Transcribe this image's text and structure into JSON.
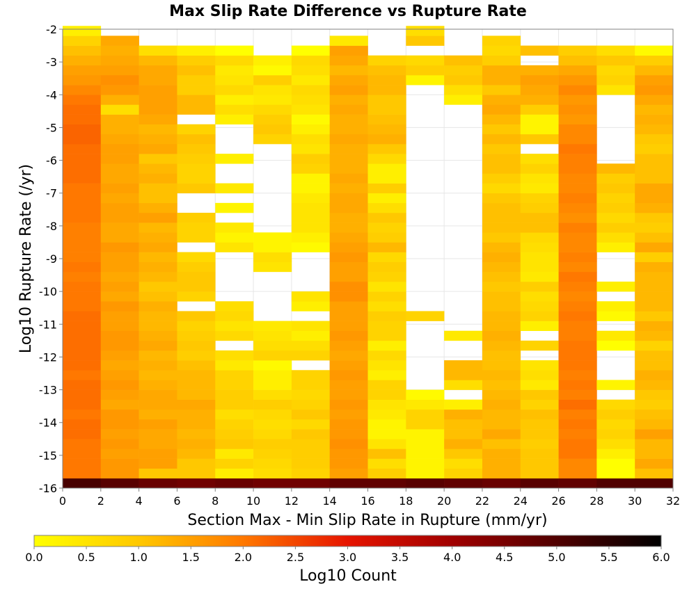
{
  "chart_data": {
    "type": "heatmap",
    "title": "Max Slip Rate Difference vs Rupture Rate",
    "xlabel": "Section Max - Min Slip Rate in Rupture (mm/yr)",
    "ylabel": "Log10 Rupture Rate (/yr)",
    "xlim": [
      0,
      32
    ],
    "ylim": [
      -16,
      -2
    ],
    "x_ticks": [
      "0",
      "2",
      "4",
      "6",
      "8",
      "10",
      "12",
      "14",
      "16",
      "18",
      "20",
      "22",
      "24",
      "26",
      "28",
      "30",
      "32"
    ],
    "y_ticks": [
      "-2",
      "-3",
      "-4",
      "-5",
      "-6",
      "-7",
      "-8",
      "-9",
      "-10",
      "-11",
      "-12",
      "-13",
      "-14",
      "-15",
      "-16"
    ],
    "grid": true,
    "x_bin_width": 2,
    "y_bin_height": 0.3,
    "colorbar": {
      "label": "Log10 Count",
      "range": [
        0.0,
        6.0
      ],
      "ticks": [
        "0.0",
        "0.5",
        "1.0",
        "1.5",
        "2.0",
        "2.5",
        "3.0",
        "3.5",
        "4.0",
        "4.5",
        "5.0",
        "5.5",
        "6.0"
      ],
      "stops": [
        {
          "v": 0.0,
          "color": "#ffff00"
        },
        {
          "v": 1.0,
          "color": "#ffc800"
        },
        {
          "v": 2.0,
          "color": "#ff7800"
        },
        {
          "v": 3.0,
          "color": "#e61400"
        },
        {
          "v": 4.0,
          "color": "#a00000"
        },
        {
          "v": 5.0,
          "color": "#500000"
        },
        {
          "v": 6.0,
          "color": "#000000"
        }
      ]
    },
    "cells": [
      {
        "x": 0,
        "y0": -16.0,
        "values": [
          5.1,
          2.0,
          2.0,
          2.0,
          2.0,
          2.1,
          2.1,
          2.0,
          2.1,
          2.1,
          2.1,
          2.0,
          2.1,
          2.1,
          2.1,
          2.1,
          2.1,
          2.1,
          2.0,
          2.0,
          2.0,
          1.9,
          2.0,
          1.9,
          1.9,
          1.9,
          1.9,
          2.0,
          2.0,
          2.0,
          2.0,
          2.1,
          2.1,
          2.1,
          2.1,
          2.2,
          2.2,
          2.1,
          2.1,
          2.0,
          1.8,
          1.6,
          1.5,
          1.3,
          1.1,
          0.8,
          0.3
        ]
      },
      {
        "x": 2,
        "y0": -16.0,
        "values": [
          4.9,
          1.6,
          1.6,
          1.5,
          1.6,
          1.5,
          1.6,
          1.6,
          1.4,
          1.5,
          1.6,
          1.5,
          1.4,
          1.5,
          1.6,
          1.6,
          1.5,
          1.5,
          1.6,
          1.4,
          1.5,
          1.4,
          1.5,
          1.5,
          1.6,
          1.4,
          1.4,
          1.5,
          1.5,
          1.4,
          1.5,
          1.4,
          1.4,
          1.5,
          1.5,
          1.4,
          1.3,
          1.3,
          0.6,
          1.3,
          1.6,
          1.7,
          1.5,
          1.4,
          1.3,
          1.4
        ]
      },
      {
        "x": 4,
        "y0": -16.0,
        "values": [
          4.7,
          1.0,
          1.5,
          1.5,
          1.4,
          1.4,
          1.5,
          1.3,
          1.4,
          1.4,
          1.3,
          1.2,
          1.3,
          1.2,
          1.4,
          1.3,
          1.2,
          1.2,
          1.3,
          1.1,
          1.0,
          1.2,
          1.3,
          1.2,
          1.4,
          1.3,
          1.2,
          1.5,
          1.3,
          1.1,
          1.1,
          1.3,
          1.2,
          1.0,
          1.4,
          1.3,
          1.2,
          1.4,
          1.5,
          1.5,
          1.5,
          1.4,
          1.4,
          1.2,
          0.6
        ]
      },
      {
        "x": 6,
        "y0": -16.0,
        "values": [
          4.6,
          1.0,
          1.0,
          1.2,
          1.3,
          1.2,
          1.3,
          1.3,
          1.4,
          1.2,
          1.2,
          1.2,
          1.1,
          0.9,
          1.0,
          0.9,
          0.8,
          1.0,
          null,
          0.8,
          1.0,
          1.0,
          0.9,
          0.7,
          null,
          0.8,
          0.8,
          0.9,
          null,
          null,
          1.0,
          0.8,
          0.8,
          0.9,
          1.0,
          1.1,
          0.8,
          null,
          1.2,
          1.2,
          0.9,
          0.9,
          1.1,
          0.9,
          0.3
        ]
      },
      {
        "x": 8,
        "y0": -16.0,
        "values": [
          4.7,
          0.3,
          0.8,
          0.4,
          1.0,
          0.9,
          0.8,
          0.6,
          0.9,
          0.9,
          0.8,
          0.8,
          0.4,
          0.6,
          null,
          0.7,
          0.5,
          0.7,
          0.6,
          null,
          null,
          null,
          null,
          null,
          0.5,
          0.2,
          0.4,
          null,
          0.2,
          null,
          0.4,
          null,
          null,
          0.3,
          null,
          null,
          null,
          0.3,
          0.6,
          0.3,
          0.7,
          0.5,
          0.4,
          0.7,
          0.0
        ]
      },
      {
        "x": 10,
        "y0": -16.0,
        "values": [
          4.6,
          0.6,
          0.7,
          0.8,
          0.9,
          0.7,
          0.6,
          0.7,
          0.9,
          0.6,
          0.3,
          0.3,
          0.1,
          0.8,
          0.6,
          0.5,
          0.4,
          null,
          null,
          null,
          null,
          null,
          0.5,
          0.6,
          0.2,
          0.2,
          null,
          null,
          null,
          null,
          null,
          null,
          null,
          null,
          null,
          0.8,
          1.0,
          0.9,
          0.7,
          0.4,
          0.5,
          0.9,
          0.1,
          0.3
        ]
      },
      {
        "x": 12,
        "y0": -16.0,
        "values": [
          4.6,
          0.8,
          0.9,
          0.9,
          0.9,
          1.0,
          0.7,
          1.0,
          0.8,
          0.7,
          0.8,
          0.8,
          null,
          0.8,
          0.6,
          0.3,
          0.5,
          null,
          0.3,
          0.5,
          null,
          null,
          null,
          null,
          0.1,
          0.3,
          0.5,
          0.5,
          0.5,
          0.4,
          0.2,
          0.2,
          0.8,
          0.9,
          0.5,
          0.6,
          0.3,
          0.1,
          0.5,
          0.6,
          0.7,
          0.4,
          0.6,
          0.7,
          0.0
        ]
      },
      {
        "x": 14,
        "y0": -16.0,
        "values": [
          4.8,
          1.5,
          1.6,
          1.6,
          1.7,
          1.6,
          1.6,
          1.5,
          1.6,
          1.5,
          1.5,
          1.6,
          1.5,
          1.4,
          1.5,
          1.6,
          1.5,
          1.5,
          1.5,
          1.7,
          1.7,
          1.5,
          1.5,
          1.6,
          1.5,
          1.4,
          1.3,
          1.3,
          1.4,
          1.4,
          1.3,
          1.4,
          1.3,
          1.3,
          1.3,
          1.4,
          1.3,
          1.3,
          1.4,
          1.3,
          1.5,
          1.4,
          1.2,
          1.4,
          1.5,
          0.4
        ]
      },
      {
        "x": 16,
        "y0": -16.0,
        "values": [
          4.8,
          0.9,
          0.6,
          1.1,
          0.5,
          0.2,
          0.2,
          0.4,
          0.5,
          0.8,
          0.8,
          0.3,
          0.5,
          0.7,
          0.3,
          0.8,
          0.8,
          0.9,
          0.6,
          0.8,
          0.5,
          0.8,
          0.9,
          0.7,
          1.2,
          0.9,
          0.8,
          1.0,
          0.6,
          0.3,
          0.9,
          0.3,
          0.3,
          0.7,
          1.0,
          1.3,
          1.2,
          1.1,
          1.0,
          1.0,
          1.2,
          1.2,
          1.1,
          0.8
        ]
      },
      {
        "x": 18,
        "y0": -16.0,
        "values": [
          4.9,
          0.2,
          0.2,
          0.2,
          0.2,
          0.2,
          0.8,
          0.8,
          0.4,
          0.1,
          null,
          null,
          null,
          null,
          null,
          null,
          null,
          0.8,
          null,
          null,
          null,
          null,
          null,
          null,
          null,
          null,
          null,
          null,
          null,
          null,
          null,
          null,
          null,
          null,
          null,
          null,
          null,
          null,
          null,
          null,
          null,
          0.2,
          0.9,
          0.7,
          null,
          1.0,
          0.6
        ]
      },
      {
        "x": 20,
        "y0": -16.0,
        "values": [
          4.8,
          0.8,
          0.6,
          1.0,
          1.3,
          1.1,
          1.1,
          1.3,
          0.3,
          null,
          0.6,
          1.2,
          1.2,
          null,
          null,
          0.4,
          null,
          null,
          null,
          null,
          null,
          null,
          null,
          null,
          null,
          null,
          null,
          null,
          null,
          null,
          null,
          null,
          null,
          null,
          null,
          null,
          null,
          null,
          null,
          0.3,
          0.6,
          1.0,
          0.9,
          1.1
        ]
      },
      {
        "x": 22,
        "y0": -16.0,
        "values": [
          4.7,
          1.3,
          1.3,
          1.3,
          1.1,
          1.4,
          1.2,
          1.2,
          1.3,
          1.2,
          1.1,
          1.2,
          1.1,
          1.1,
          1.2,
          1.3,
          1.2,
          1.2,
          1.1,
          1.1,
          1.0,
          1.1,
          1.2,
          1.3,
          1.2,
          1.0,
          1.1,
          1.1,
          1.1,
          1.0,
          0.7,
          0.9,
          1.1,
          1.1,
          1.0,
          1.2,
          1.0,
          1.2,
          1.4,
          1.3,
          1.0,
          1.3,
          1.3,
          0.9,
          0.7,
          0.8
        ]
      },
      {
        "x": 24,
        "y0": -16.0,
        "values": [
          4.9,
          1.0,
          1.0,
          1.0,
          0.9,
          1.0,
          1.0,
          1.1,
          0.8,
          1.0,
          0.4,
          0.6,
          0.5,
          null,
          0.8,
          null,
          0.3,
          0.8,
          0.7,
          0.6,
          0.9,
          0.4,
          0.5,
          0.5,
          0.6,
          0.7,
          1.1,
          1.1,
          0.9,
          0.8,
          0.4,
          0.5,
          0.8,
          0.6,
          null,
          1.0,
          0.2,
          0.2,
          0.9,
          1.3,
          1.4,
          1.5,
          1.3,
          null,
          1.1
        ]
      },
      {
        "x": 26,
        "y0": -16.0,
        "values": [
          4.8,
          1.8,
          1.8,
          2.0,
          2.0,
          1.9,
          2.0,
          1.9,
          2.1,
          1.9,
          2.0,
          1.9,
          2.0,
          2.0,
          2.0,
          1.9,
          1.9,
          2.0,
          1.9,
          1.8,
          1.9,
          2.0,
          1.8,
          1.9,
          1.8,
          1.8,
          1.9,
          1.7,
          1.8,
          1.9,
          1.8,
          1.8,
          1.9,
          1.9,
          2.0,
          1.8,
          1.8,
          1.6,
          1.7,
          1.6,
          1.8,
          1.6,
          1.4,
          1.1,
          0.9
        ]
      },
      {
        "x": 28,
        "y0": -16.0,
        "values": [
          5.0,
          0.0,
          0.0,
          0.3,
          0.6,
          0.8,
          0.7,
          0.9,
          0.7,
          null,
          0.2,
          null,
          null,
          null,
          0.0,
          0.4,
          null,
          0.1,
          0.3,
          null,
          0.3,
          null,
          null,
          null,
          0.3,
          0.6,
          0.9,
          0.7,
          0.9,
          0.8,
          1.0,
          0.9,
          1.2,
          null,
          null,
          null,
          null,
          null,
          null,
          null,
          0.5,
          0.8,
          0.7,
          1.0,
          0.6
        ]
      },
      {
        "x": 30,
        "y0": -16.0,
        "values": [
          5.0,
          1.1,
          1.4,
          1.2,
          1.2,
          1.5,
          1.2,
          1.1,
          0.9,
          1.0,
          1.2,
          1.3,
          1.1,
          1.1,
          0.8,
          1.2,
          1.3,
          1.0,
          1.2,
          1.2,
          1.2,
          1.2,
          1.3,
          0.9,
          1.4,
          1.1,
          0.9,
          1.0,
          1.3,
          1.4,
          1.4,
          1.1,
          1.1,
          1.1,
          0.9,
          1.0,
          1.2,
          1.3,
          1.2,
          1.4,
          1.6,
          1.5,
          1.2,
          0.9,
          0.1
        ]
      }
    ]
  }
}
